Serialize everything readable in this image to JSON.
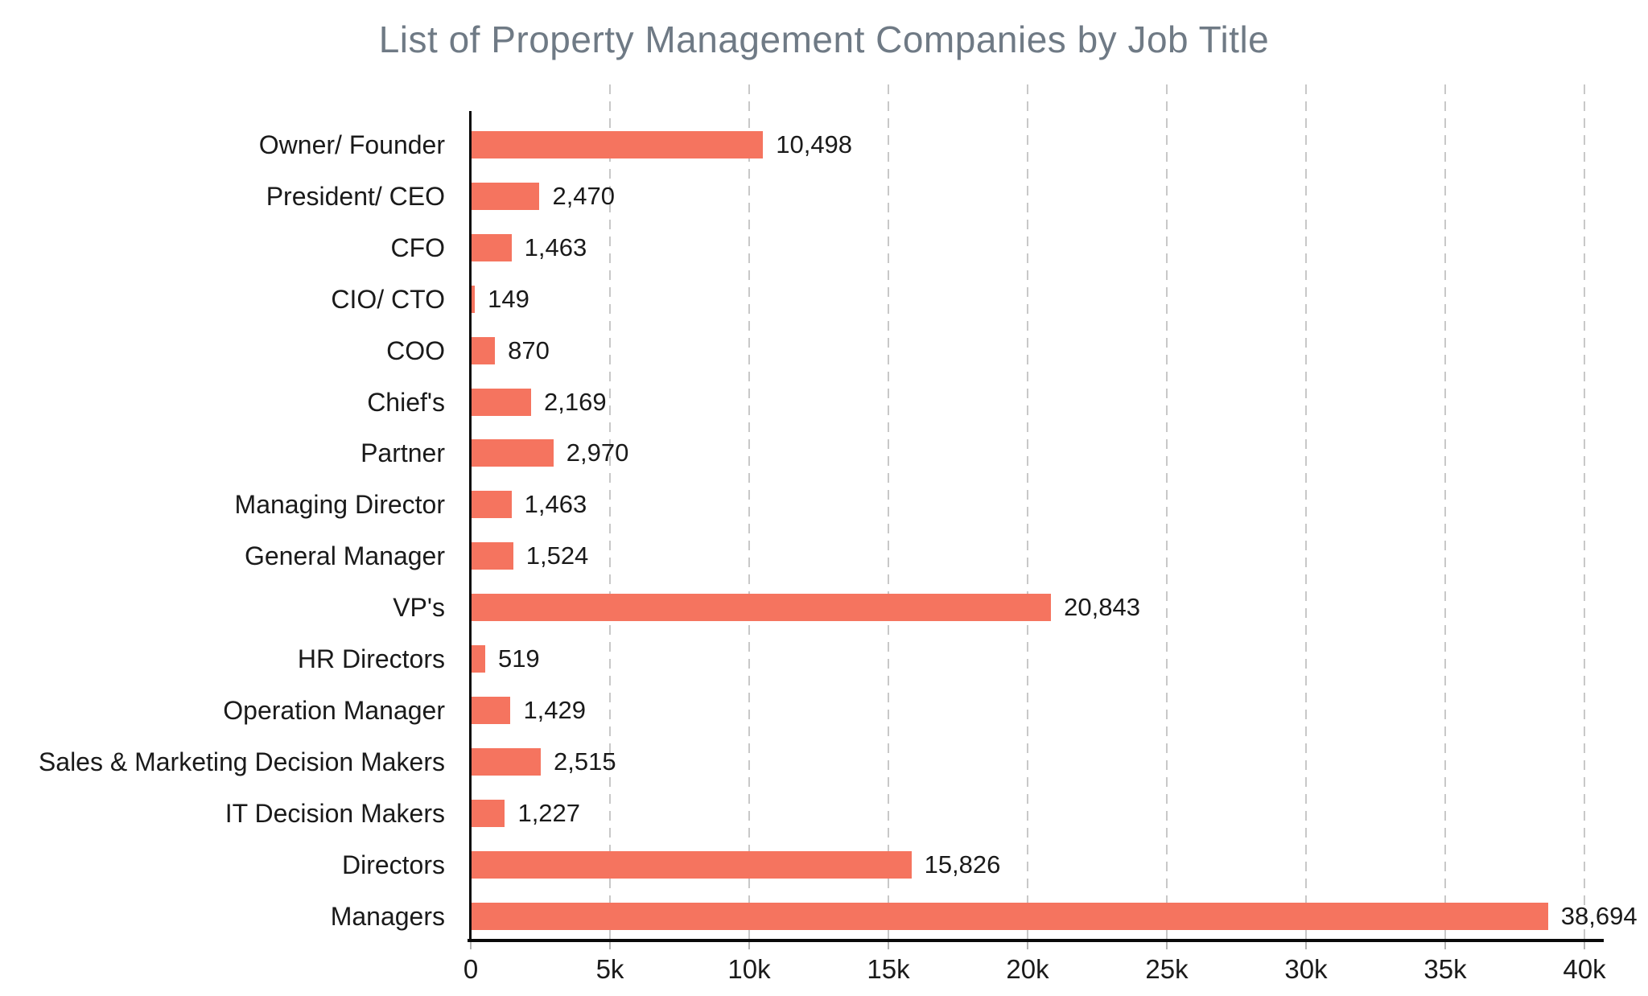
{
  "colors": {
    "bar": "#f5745f",
    "title_text": "#6f7a85",
    "axis": "#0a0a0a",
    "grid": "#c8c8c8",
    "label_text": "#1a1a1a",
    "background": "#ffffff"
  },
  "chart_data": {
    "type": "bar",
    "orientation": "horizontal",
    "title": "List of Property Management Companies by Job Title",
    "xlabel": "",
    "ylabel": "",
    "categories": [
      "Owner/ Founder",
      "President/ CEO",
      "CFO",
      "CIO/ CTO",
      "COO",
      "Chief's",
      "Partner",
      "Managing Director",
      "General Manager",
      "VP's",
      "HR Directors",
      "Operation Manager",
      "Sales & Marketing Decision Makers",
      "IT Decision Makers",
      "Directors",
      "Managers"
    ],
    "values": [
      10498,
      2470,
      1463,
      149,
      870,
      2169,
      2970,
      1463,
      1524,
      20843,
      519,
      1429,
      2515,
      1227,
      15826,
      38694
    ],
    "value_labels": [
      "10,498",
      "2,470",
      "1,463",
      "149",
      "870",
      "2,169",
      "2,970",
      "1,463",
      "1,524",
      "20,843",
      "519",
      "1,429",
      "2,515",
      "1,227",
      "15,826",
      "38,694"
    ],
    "xlim": [
      0,
      40000
    ],
    "x_tick_values": [
      0,
      5000,
      10000,
      15000,
      20000,
      25000,
      30000,
      35000,
      40000
    ],
    "x_tick_labels": [
      "0",
      "5k",
      "10k",
      "15k",
      "20k",
      "25k",
      "30k",
      "35k",
      "40k"
    ],
    "grid": "vertical-dashed",
    "legend": "none"
  }
}
